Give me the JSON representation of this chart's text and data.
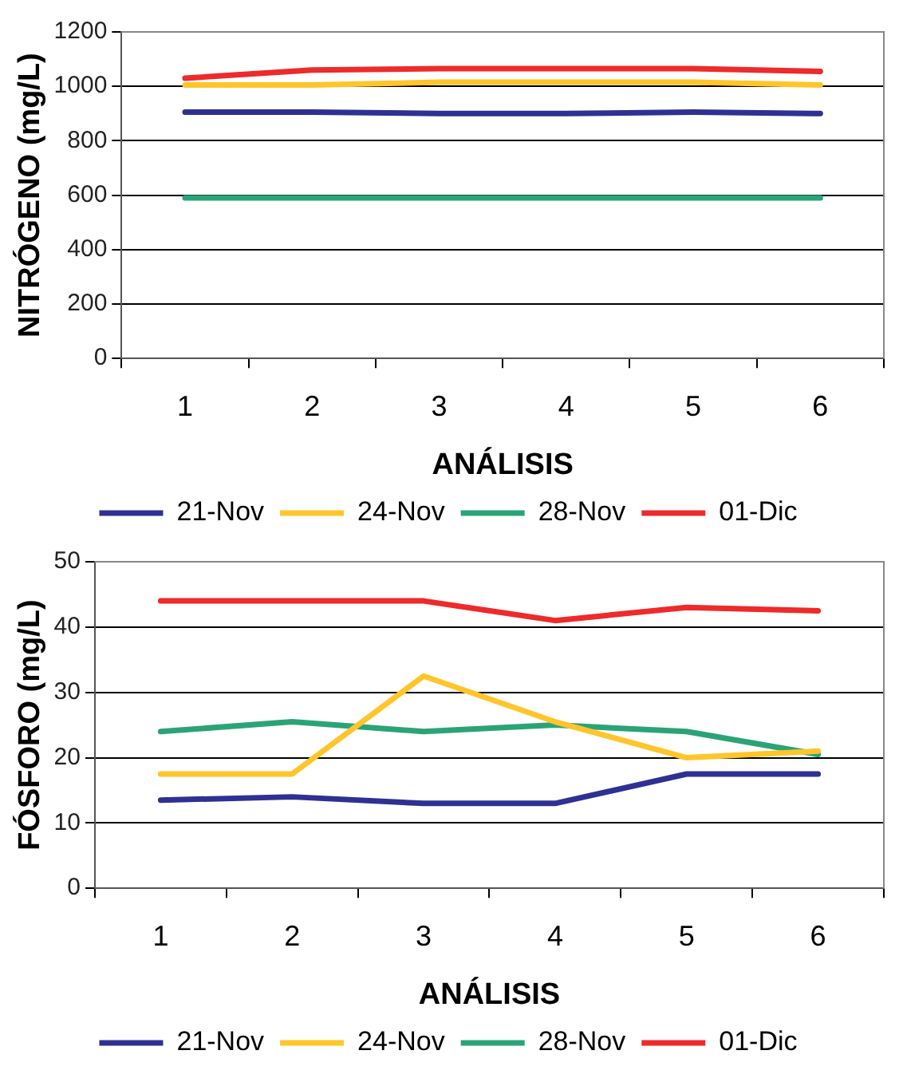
{
  "chart_data": [
    {
      "type": "line",
      "xlabel": "ANÁLISIS",
      "ylabel": "NITRÓGENO (mg/L)",
      "categories": [
        "1",
        "2",
        "3",
        "4",
        "5",
        "6"
      ],
      "ylim": [
        0,
        1200
      ],
      "yticks": [
        0,
        200,
        400,
        600,
        800,
        1000,
        1200
      ],
      "grid": "y",
      "legend": "bottom",
      "marker": "none",
      "line_style": "solid",
      "series": [
        {
          "name": "21-Nov",
          "color": "#2e3192",
          "values": [
            905,
            905,
            900,
            900,
            905,
            900
          ]
        },
        {
          "name": "24-Nov",
          "color": "#ffc52a",
          "values": [
            1005,
            1005,
            1015,
            1015,
            1015,
            1005
          ]
        },
        {
          "name": "28-Nov",
          "color": "#2aa477",
          "values": [
            590,
            590,
            590,
            590,
            590,
            590
          ]
        },
        {
          "name": "01-Dic",
          "color": "#ee2a2a",
          "values": [
            1030,
            1060,
            1065,
            1065,
            1065,
            1055
          ]
        }
      ]
    },
    {
      "type": "line",
      "xlabel": "ANÁLISIS",
      "ylabel": "FÓSFORO (mg/L)",
      "categories": [
        "1",
        "2",
        "3",
        "4",
        "5",
        "6"
      ],
      "ylim": [
        0,
        50
      ],
      "yticks": [
        0,
        10,
        20,
        30,
        40,
        50
      ],
      "grid": "y",
      "legend": "bottom",
      "marker": "none",
      "line_style": "solid",
      "series": [
        {
          "name": "21-Nov",
          "color": "#2e3192",
          "values": [
            13.5,
            14,
            13,
            13,
            17.5,
            17.5
          ]
        },
        {
          "name": "24-Nov",
          "color": "#ffc52a",
          "values": [
            17.5,
            17.5,
            32.5,
            25.5,
            20,
            21
          ]
        },
        {
          "name": "28-Nov",
          "color": "#2aa477",
          "values": [
            24,
            25.5,
            24,
            25,
            24,
            20.5
          ]
        },
        {
          "name": "01-Dic",
          "color": "#ee2a2a",
          "values": [
            44,
            44,
            44,
            41,
            43,
            42.5
          ]
        }
      ]
    }
  ]
}
